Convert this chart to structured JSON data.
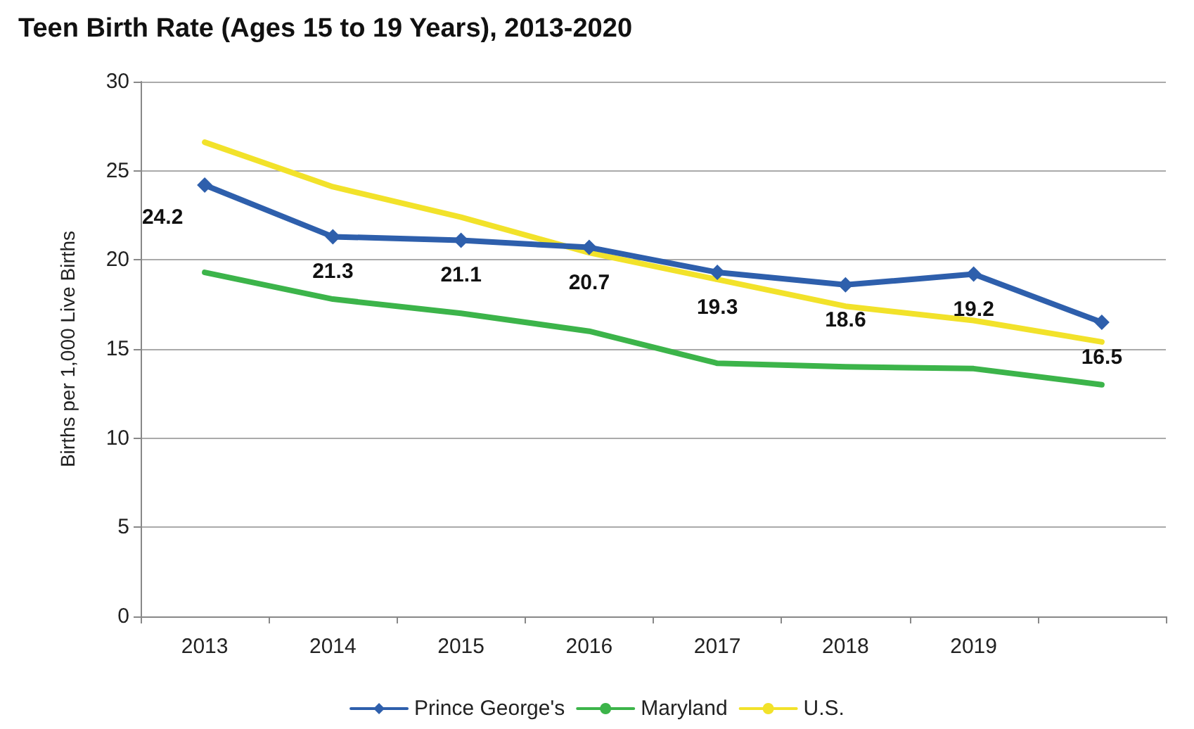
{
  "chart_data": {
    "type": "line",
    "title": "Teen Birth Rate (Ages 15 to 19 Years), 2013-2020",
    "ylabel": "Births per 1,000 Live Births",
    "categories": [
      "2013",
      "2014",
      "2015",
      "2016",
      "2017",
      "2018",
      "2019",
      null
    ],
    "series": [
      {
        "name": "Prince George's",
        "color": "#2e5fac",
        "marker": "diamond",
        "values": [
          24.2,
          21.3,
          21.1,
          20.7,
          19.3,
          18.6,
          19.2,
          16.5
        ],
        "value_labels": [
          "24.2",
          "21.3",
          "21.1",
          "20.7",
          "19.3",
          "18.6",
          "19.2",
          "16.5"
        ]
      },
      {
        "name": "Maryland",
        "color": "#3cb44a",
        "marker": "none",
        "values": [
          19.3,
          17.8,
          17.0,
          16.0,
          14.2,
          14.0,
          13.9,
          13.0
        ]
      },
      {
        "name": "U.S.",
        "color": "#f2e22a",
        "marker": "none",
        "values": [
          26.6,
          24.1,
          22.4,
          20.4,
          18.9,
          17.4,
          16.6,
          15.4
        ]
      }
    ],
    "ylim": [
      0,
      30
    ],
    "yticks": [
      0,
      5,
      10,
      15,
      20,
      25,
      30
    ],
    "grid": "y",
    "legend": "bottom",
    "line_style": "solid"
  }
}
